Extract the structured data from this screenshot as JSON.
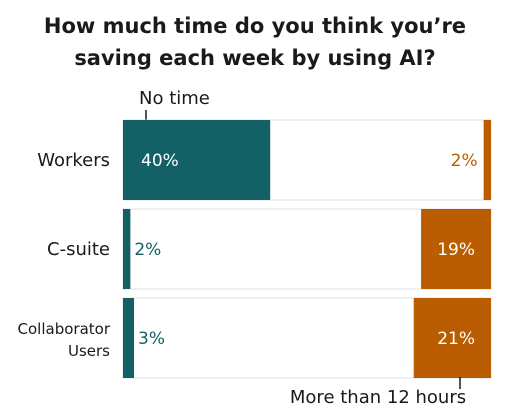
{
  "chart_data": {
    "type": "bar",
    "title_lines": [
      "How much time do you think you’re",
      "saving each week by using AI?"
    ],
    "annotations": {
      "left": "No time",
      "right": "More than 12 hours"
    },
    "categories": [
      {
        "lines": [
          "Workers"
        ]
      },
      {
        "lines": [
          "C-suite"
        ]
      },
      {
        "lines": [
          "Collaborator",
          "Users"
        ]
      }
    ],
    "series": [
      {
        "name": "No time",
        "values": [
          40,
          2,
          3
        ],
        "labels": [
          "40%",
          "2%",
          "3%"
        ]
      },
      {
        "name": "More than 12 hours",
        "values": [
          2,
          19,
          21
        ],
        "labels": [
          "2%",
          "19%",
          "21%"
        ]
      }
    ],
    "xlim": [
      0,
      100
    ],
    "colors": {
      "no_time": "#136166",
      "more_than_12": "#b95d00",
      "track": "#ffffff",
      "track_stroke": "#d9d9d9",
      "background": "#ffffff"
    }
  }
}
